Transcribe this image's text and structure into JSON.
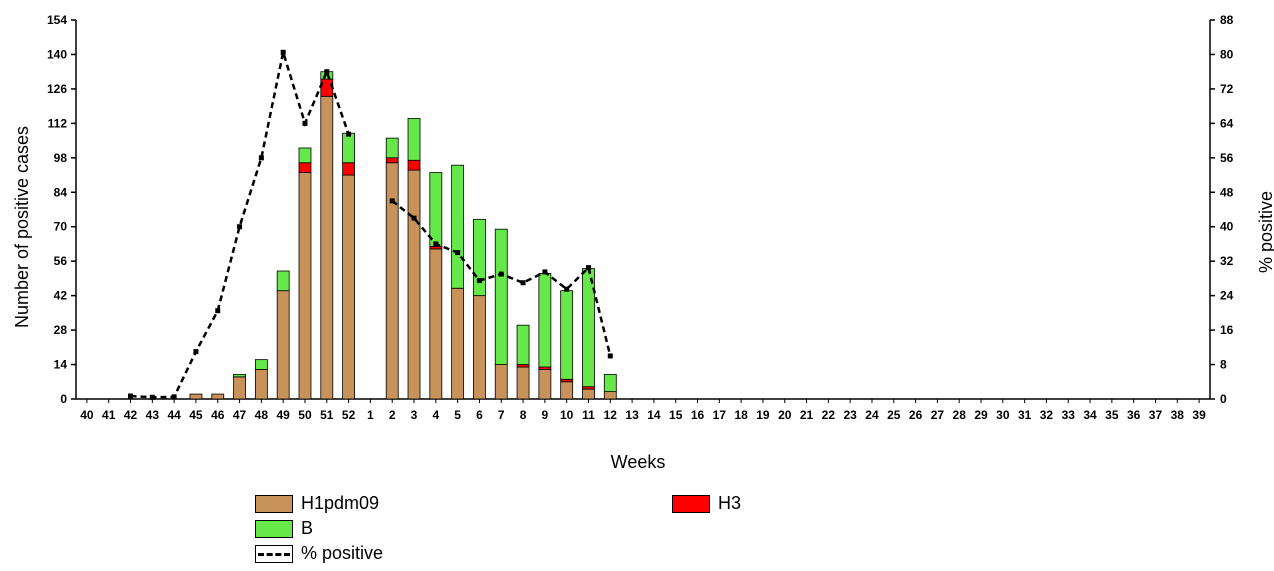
{
  "chart_data": {
    "type": "bar",
    "stacked": true,
    "xlabel": "Weeks",
    "ylabel": "Number of positive cases",
    "y2label": "% positive",
    "ylim": [
      0,
      154
    ],
    "yticks": [
      0,
      14,
      28,
      42,
      56,
      70,
      84,
      98,
      112,
      126,
      140,
      154
    ],
    "y2lim": [
      0,
      88
    ],
    "y2ticks": [
      0,
      8,
      16,
      24,
      32,
      40,
      48,
      56,
      64,
      72,
      80,
      88
    ],
    "categories": [
      "40",
      "41",
      "42",
      "43",
      "44",
      "45",
      "46",
      "47",
      "48",
      "49",
      "50",
      "51",
      "52",
      "1",
      "2",
      "3",
      "4",
      "5",
      "6",
      "7",
      "8",
      "9",
      "10",
      "11",
      "12",
      "13",
      "14",
      "15",
      "16",
      "17",
      "18",
      "19",
      "20",
      "21",
      "22",
      "23",
      "24",
      "25",
      "26",
      "27",
      "28",
      "29",
      "30",
      "31",
      "32",
      "33",
      "34",
      "35",
      "36",
      "37",
      "38",
      "39"
    ],
    "series": [
      {
        "name": "H1pdm09",
        "color": "#c8935b",
        "values": [
          0,
          0,
          0,
          0,
          0,
          2,
          2,
          9,
          12,
          44,
          92,
          123,
          91,
          0,
          96,
          93,
          61,
          45,
          42,
          14,
          13,
          12,
          7,
          4,
          3,
          0,
          0,
          0,
          0,
          0,
          0,
          0,
          0,
          0,
          0,
          0,
          0,
          0,
          0,
          0,
          0,
          0,
          0,
          0,
          0,
          0,
          0,
          0,
          0,
          0,
          0,
          0
        ]
      },
      {
        "name": "H3",
        "color": "#ff0000",
        "values": [
          0,
          0,
          0,
          0,
          0,
          0,
          0,
          0,
          0,
          0,
          4,
          7,
          5,
          0,
          2,
          4,
          1,
          0,
          0,
          0,
          1,
          1,
          1,
          1,
          0,
          0,
          0,
          0,
          0,
          0,
          0,
          0,
          0,
          0,
          0,
          0,
          0,
          0,
          0,
          0,
          0,
          0,
          0,
          0,
          0,
          0,
          0,
          0,
          0,
          0,
          0,
          0
        ]
      },
      {
        "name": "B",
        "color": "#66e84a",
        "values": [
          0,
          0,
          0,
          0,
          0,
          0,
          0,
          1,
          4,
          8,
          6,
          3,
          12,
          0,
          8,
          17,
          30,
          50,
          31,
          55,
          16,
          38,
          36,
          48,
          7,
          0,
          0,
          0,
          0,
          0,
          0,
          0,
          0,
          0,
          0,
          0,
          0,
          0,
          0,
          0,
          0,
          0,
          0,
          0,
          0,
          0,
          0,
          0,
          0,
          0,
          0,
          0
        ]
      },
      {
        "name": "% positive",
        "type": "line",
        "axis": "right",
        "color": "#000000",
        "values": [
          null,
          null,
          0.7,
          0.4,
          0.5,
          11,
          20.5,
          40,
          56,
          80.5,
          64,
          76,
          61.5,
          null,
          46,
          42,
          36,
          34,
          27.5,
          29,
          27,
          29.5,
          25.5,
          30.5,
          10,
          null,
          null,
          null,
          null,
          null,
          null,
          null,
          null,
          null,
          null,
          null,
          null,
          null,
          null,
          null,
          null,
          null,
          null,
          null,
          null,
          null,
          null,
          null,
          null,
          null,
          null,
          null
        ]
      }
    ]
  },
  "legend": {
    "h1": "H1pdm09",
    "h3": "H3",
    "b": "B",
    "pct": "% positive"
  }
}
